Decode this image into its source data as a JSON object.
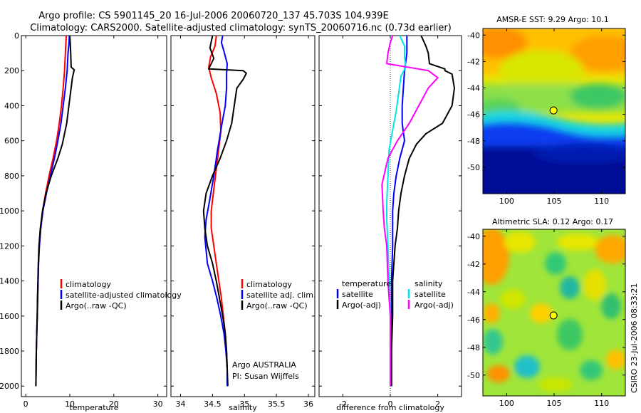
{
  "title": {
    "line1": "Argo profile: CS 5901145_20 16-Jul-2006 20060720_137 45.703S 104.939E",
    "line2": "Climatology: CARS2000. Satellite-adjusted climatology: synTS_20060716.nc (0.73d earlier)"
  },
  "footer": {
    "credit1": "Argo AUSTRALIA",
    "credit2": "PI: Susan Wijffels",
    "stamp": "CSIRO 23-Jul-2006 08:33:21"
  },
  "chart_data": [
    {
      "type": "line",
      "id": "temperature",
      "xlabel": "temperature",
      "ylabel": "",
      "xlim": [
        -1,
        32
      ],
      "ylim": [
        2060,
        0
      ],
      "xticks": [
        0,
        10,
        20,
        30
      ],
      "yticks": [
        0,
        200,
        400,
        600,
        800,
        1000,
        1200,
        1400,
        1600,
        1800,
        2000
      ],
      "legend": {
        "position": "lower-left",
        "entries": [
          "climatology",
          "satellite-adjusted climatology",
          "Argo(..raw -QC)"
        ]
      },
      "series": [
        {
          "name": "climatology",
          "color": "#ff0000",
          "points": [
            [
              9.2,
              0
            ],
            [
              9.1,
              50
            ],
            [
              9.0,
              100
            ],
            [
              8.8,
              200
            ],
            [
              8.5,
              300
            ],
            [
              8.1,
              400
            ],
            [
              7.6,
              500
            ],
            [
              7.0,
              600
            ],
            [
              6.2,
              700
            ],
            [
              5.3,
              800
            ],
            [
              4.5,
              900
            ],
            [
              3.8,
              1000
            ],
            [
              3.4,
              1100
            ],
            [
              3.1,
              1200
            ],
            [
              2.9,
              1300
            ],
            [
              2.8,
              1400
            ],
            [
              2.7,
              1500
            ],
            [
              2.6,
              1600
            ],
            [
              2.5,
              1700
            ],
            [
              2.4,
              1800
            ],
            [
              2.35,
              1900
            ],
            [
              2.3,
              2000
            ]
          ]
        },
        {
          "name": "satellite-adjusted climatology",
          "color": "#0000ff",
          "points": [
            [
              9.9,
              0
            ],
            [
              9.8,
              50
            ],
            [
              9.6,
              100
            ],
            [
              9.4,
              200
            ],
            [
              9.0,
              300
            ],
            [
              8.5,
              400
            ],
            [
              8.0,
              500
            ],
            [
              7.3,
              600
            ],
            [
              6.5,
              700
            ],
            [
              5.6,
              800
            ],
            [
              4.7,
              900
            ],
            [
              3.9,
              1000
            ],
            [
              3.4,
              1100
            ],
            [
              3.1,
              1200
            ],
            [
              2.9,
              1300
            ],
            [
              2.8,
              1400
            ],
            [
              2.7,
              1500
            ],
            [
              2.6,
              1600
            ],
            [
              2.5,
              1700
            ],
            [
              2.4,
              1800
            ],
            [
              2.35,
              1900
            ],
            [
              2.3,
              2000
            ]
          ]
        },
        {
          "name": "Argo(..raw -QC)",
          "color": "#000000",
          "points": [
            [
              10.0,
              0
            ],
            [
              10.1,
              40
            ],
            [
              10.2,
              90
            ],
            [
              10.3,
              180
            ],
            [
              11.0,
              195
            ],
            [
              10.6,
              240
            ],
            [
              10.2,
              320
            ],
            [
              9.7,
              420
            ],
            [
              9.3,
              500
            ],
            [
              8.8,
              560
            ],
            [
              8.3,
              620
            ],
            [
              7.3,
              700
            ],
            [
              5.8,
              800
            ],
            [
              4.6,
              900
            ],
            [
              3.8,
              1000
            ],
            [
              3.3,
              1100
            ],
            [
              3.0,
              1200
            ],
            [
              2.85,
              1300
            ],
            [
              2.75,
              1400
            ],
            [
              2.65,
              1500
            ],
            [
              2.6,
              1600
            ],
            [
              2.5,
              1700
            ],
            [
              2.4,
              1800
            ],
            [
              2.35,
              1900
            ],
            [
              2.3,
              2000
            ]
          ]
        }
      ]
    },
    {
      "type": "line",
      "id": "salinity",
      "xlabel": "salinity",
      "xlim": [
        33.85,
        36.1
      ],
      "ylim": [
        2060,
        0
      ],
      "xticks": [
        34,
        34.5,
        35,
        35.5,
        36
      ],
      "legend": {
        "position": "lower-right",
        "entries": [
          "climatology",
          "satellite adj. clim.",
          "Argo(..raw -QC)"
        ]
      },
      "series": [
        {
          "name": "climatology",
          "color": "#ff0000",
          "points": [
            [
              34.56,
              0
            ],
            [
              34.54,
              60
            ],
            [
              34.47,
              120
            ],
            [
              34.44,
              180
            ],
            [
              34.48,
              240
            ],
            [
              34.56,
              330
            ],
            [
              34.62,
              440
            ],
            [
              34.63,
              550
            ],
            [
              34.58,
              700
            ],
            [
              34.53,
              850
            ],
            [
              34.48,
              1000
            ],
            [
              34.48,
              1100
            ],
            [
              34.52,
              1200
            ],
            [
              34.56,
              1300
            ],
            [
              34.6,
              1400
            ],
            [
              34.64,
              1500
            ],
            [
              34.67,
              1600
            ],
            [
              34.7,
              1700
            ],
            [
              34.72,
              1800
            ],
            [
              34.73,
              1900
            ],
            [
              34.73,
              2000
            ]
          ]
        },
        {
          "name": "satellite adj. clim.",
          "color": "#0000ff",
          "points": [
            [
              34.66,
              0
            ],
            [
              34.64,
              40
            ],
            [
              34.68,
              90
            ],
            [
              34.73,
              160
            ],
            [
              34.72,
              220
            ],
            [
              34.72,
              300
            ],
            [
              34.7,
              400
            ],
            [
              34.65,
              500
            ],
            [
              34.58,
              650
            ],
            [
              34.52,
              800
            ],
            [
              34.45,
              950
            ],
            [
              34.4,
              1050
            ],
            [
              34.38,
              1150
            ],
            [
              34.42,
              1300
            ],
            [
              34.5,
              1400
            ],
            [
              34.57,
              1500
            ],
            [
              34.63,
              1600
            ],
            [
              34.68,
              1700
            ],
            [
              34.71,
              1800
            ],
            [
              34.73,
              1900
            ],
            [
              34.73,
              2000
            ]
          ]
        },
        {
          "name": "Argo(..raw -QC)",
          "color": "#000000",
          "points": [
            [
              34.5,
              0
            ],
            [
              34.46,
              70
            ],
            [
              34.52,
              130
            ],
            [
              34.44,
              190
            ],
            [
              34.98,
              200
            ],
            [
              35.03,
              215
            ],
            [
              34.98,
              250
            ],
            [
              34.88,
              300
            ],
            [
              34.84,
              400
            ],
            [
              34.8,
              500
            ],
            [
              34.72,
              600
            ],
            [
              34.62,
              700
            ],
            [
              34.5,
              800
            ],
            [
              34.4,
              900
            ],
            [
              34.36,
              1000
            ],
            [
              34.38,
              1100
            ],
            [
              34.42,
              1200
            ],
            [
              34.5,
              1300
            ],
            [
              34.56,
              1400
            ],
            [
              34.61,
              1500
            ],
            [
              34.66,
              1600
            ],
            [
              34.7,
              1700
            ],
            [
              34.72,
              1800
            ],
            [
              34.73,
              1900
            ],
            [
              34.74,
              2000
            ]
          ]
        }
      ]
    },
    {
      "type": "line",
      "id": "difference",
      "xlabel": "difference from climatology",
      "xlim": [
        -3,
        3
      ],
      "ylim": [
        2060,
        0
      ],
      "xticks": [
        -2,
        0,
        2
      ],
      "zero_line": true,
      "legend": {
        "position": "lower",
        "headers": [
          "temperature",
          "salinity"
        ],
        "entries": [
          "satellite",
          "Argo(-adj)",
          "satellite",
          "Argo(-adj)"
        ]
      },
      "series": [
        {
          "name": "temperature satellite",
          "color": "#0000ff",
          "points": [
            [
              0.7,
              0
            ],
            [
              0.7,
              100
            ],
            [
              0.6,
              200
            ],
            [
              0.5,
              400
            ],
            [
              0.5,
              500
            ],
            [
              0.6,
              600
            ],
            [
              0.4,
              700
            ],
            [
              0.25,
              800
            ],
            [
              0.15,
              900
            ],
            [
              0.1,
              1000
            ],
            [
              0.1,
              1200
            ],
            [
              0.05,
              1400
            ],
            [
              0.05,
              1600
            ],
            [
              0.05,
              1800
            ],
            [
              0.05,
              2000
            ]
          ]
        },
        {
          "name": "temperature Argo(-adj)",
          "color": "#000000",
          "points": [
            [
              1.3,
              0
            ],
            [
              1.5,
              60
            ],
            [
              1.6,
              100
            ],
            [
              1.65,
              160
            ],
            [
              2.3,
              190
            ],
            [
              2.3,
              200
            ],
            [
              2.6,
              220
            ],
            [
              2.7,
              300
            ],
            [
              2.6,
              400
            ],
            [
              2.2,
              500
            ],
            [
              1.5,
              560
            ],
            [
              1.1,
              620
            ],
            [
              0.8,
              700
            ],
            [
              0.6,
              800
            ],
            [
              0.45,
              900
            ],
            [
              0.35,
              1000
            ],
            [
              0.3,
              1100
            ],
            [
              0.2,
              1200
            ],
            [
              0.15,
              1300
            ],
            [
              0.1,
              1400
            ],
            [
              0.1,
              1600
            ],
            [
              0.05,
              1800
            ],
            [
              0.05,
              2000
            ]
          ]
        },
        {
          "name": "salinity satellite",
          "color": "#00e5e5",
          "points": [
            [
              0.4,
              0
            ],
            [
              0.6,
              60
            ],
            [
              0.6,
              120
            ],
            [
              0.65,
              180
            ],
            [
              0.45,
              230
            ],
            [
              0.35,
              330
            ],
            [
              0.25,
              430
            ],
            [
              0.1,
              540
            ],
            [
              -0.05,
              650
            ],
            [
              -0.1,
              800
            ],
            [
              -0.15,
              950
            ],
            [
              -0.15,
              1050
            ],
            [
              -0.1,
              1200
            ],
            [
              -0.05,
              1400
            ],
            [
              0,
              1600
            ],
            [
              0,
              1800
            ],
            [
              0,
              2000
            ]
          ]
        },
        {
          "name": "salinity Argo(-adj)",
          "color": "#ff00ff",
          "points": [
            [
              0.1,
              0
            ],
            [
              0,
              40
            ],
            [
              -0.1,
              100
            ],
            [
              -0.15,
              160
            ],
            [
              1.6,
              200
            ],
            [
              2.0,
              240
            ],
            [
              1.6,
              300
            ],
            [
              1.2,
              400
            ],
            [
              0.8,
              500
            ],
            [
              0.3,
              600
            ],
            [
              -0.1,
              700
            ],
            [
              -0.35,
              850
            ],
            [
              -0.3,
              1000
            ],
            [
              -0.25,
              1100
            ],
            [
              -0.15,
              1200
            ],
            [
              -0.1,
              1400
            ],
            [
              0,
              1600
            ],
            [
              0,
              1800
            ],
            [
              0,
              2000
            ]
          ]
        }
      ]
    },
    {
      "type": "heatmap",
      "id": "sst_map",
      "title": "AMSR-E SST: 9.29  Argo: 10.1",
      "xlim": [
        97.5,
        112.5
      ],
      "ylim": [
        -52,
        -39.5
      ],
      "xticks": [
        100,
        105,
        110
      ],
      "yticks": [
        -40,
        -42,
        -44,
        -46,
        -48,
        -50
      ],
      "profile_location": [
        104.939,
        -45.703
      ]
    },
    {
      "type": "heatmap",
      "id": "sla_map",
      "title": "Altimetric SLA: 0.12  Argo: 0.17",
      "xlim": [
        97.5,
        112.5
      ],
      "ylim": [
        -51.5,
        -39.5
      ],
      "xticks": [
        100,
        105,
        110
      ],
      "yticks": [
        -40,
        -42,
        -44,
        -46,
        -48,
        -50
      ],
      "profile_location": [
        104.939,
        -45.703
      ]
    }
  ]
}
